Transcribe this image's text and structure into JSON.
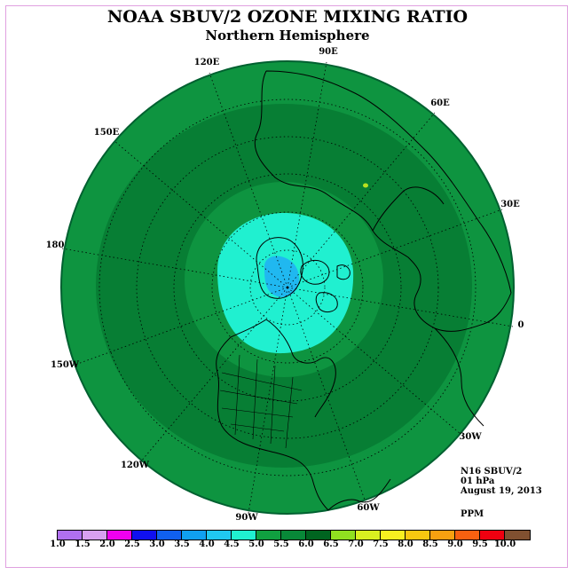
{
  "title": "NOAA SBUV/2 OZONE MIXING RATIO",
  "subtitle": "Northern Hemisphere",
  "longitude_labels": [
    "90E",
    "60E",
    "30E",
    "0",
    "30W",
    "60W",
    "90W",
    "120W",
    "150W",
    "180",
    "150E",
    "120E"
  ],
  "info": {
    "satellite": "N16 SBUV/2",
    "level": "01 hPa",
    "date": "August 19, 2013",
    "units": "PPM"
  },
  "colorbar": {
    "ticks": [
      "1.0",
      "1.5",
      "2.0",
      "2.5",
      "3.0",
      "3.5",
      "4.0",
      "4.5",
      "5.0",
      "5.5",
      "6.0",
      "6.5",
      "7.0",
      "7.5",
      "8.0",
      "8.5",
      "9.0",
      "9.5",
      "10.0"
    ],
    "colors": [
      "#b070f0",
      "#d8a0f0",
      "#f000f0",
      "#1010f0",
      "#1060f0",
      "#10a0f0",
      "#20c8f0",
      "#20f0d0",
      "#10a040",
      "#088838",
      "#006420",
      "#90e020",
      "#d8f020",
      "#f8f020",
      "#f8c810",
      "#f8a010",
      "#f86010",
      "#f00010",
      "#805030"
    ]
  },
  "map_fields": {
    "outer_band": "5.0-5.5",
    "mid_band": "5.5-6.0",
    "inner_ring": "5.0-5.5",
    "polar_cap": "4.5-5.0",
    "pole_spot": "4.0-4.5",
    "small_spot": "6.5-7.0"
  }
}
